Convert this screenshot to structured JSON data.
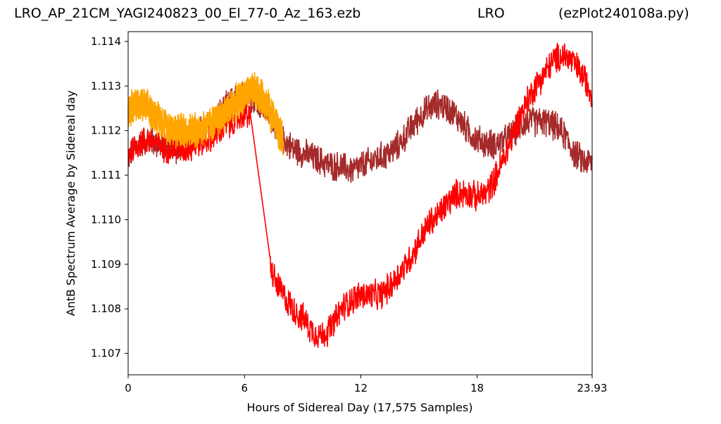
{
  "header": {
    "file_title": "LRO_AP_21CM_YAGI240823_00_El_77-0_Az_163.ezb",
    "site": "LRO",
    "program": "(ezPlot240108a.py)"
  },
  "chart_data": {
    "type": "line",
    "title": "LRO_AP_21CM_YAGI240823_00_El_77-0_Az_163.ezb",
    "xlabel": "Hours of Sidereal Day  (17,575 Samples)",
    "ylabel": "AntB Spectrum Average by Sidereal day",
    "xlim": [
      0,
      23.93
    ],
    "ylim": [
      1.10652,
      1.11422
    ],
    "xticks": [
      0,
      6,
      12,
      18,
      23.93
    ],
    "xtick_labels": [
      "0",
      "6",
      "12",
      "18",
      "23.93"
    ],
    "yticks": [
      1.107,
      1.108,
      1.109,
      1.11,
      1.111,
      1.112,
      1.113,
      1.114
    ],
    "ytick_labels": [
      "1.107",
      "1.108",
      "1.109",
      "1.110",
      "1.111",
      "1.112",
      "1.113",
      "1.114"
    ],
    "grid": false,
    "series": [
      {
        "color": "#a52a2a",
        "noise": 0.00038,
        "x": [
          0,
          0.5,
          1,
          1.5,
          2,
          2.5,
          3,
          3.5,
          4,
          4.5,
          5,
          5.5,
          6,
          6.5,
          7,
          7.5,
          8,
          8.5,
          9,
          9.5,
          10,
          10.5,
          11,
          11.5,
          12,
          12.5,
          13,
          13.5,
          14,
          14.5,
          15,
          15.5,
          16,
          16.5,
          17,
          17.5,
          18,
          18.5,
          19,
          19.5,
          20,
          20.5,
          21,
          21.5,
          22,
          22.5,
          23,
          23.5,
          23.93
        ],
        "y": [
          1.1114,
          1.1117,
          1.1118,
          1.1117,
          1.1116,
          1.1116,
          1.1117,
          1.1119,
          1.1121,
          1.1123,
          1.1125,
          1.1127,
          1.1128,
          1.1127,
          1.1125,
          1.1122,
          1.1118,
          1.1116,
          1.1115,
          1.1114,
          1.1113,
          1.1112,
          1.1112,
          1.1111,
          1.1112,
          1.1113,
          1.1114,
          1.1115,
          1.1117,
          1.112,
          1.1123,
          1.1125,
          1.1126,
          1.1125,
          1.1123,
          1.112,
          1.1118,
          1.1117,
          1.1117,
          1.1118,
          1.112,
          1.1122,
          1.1122,
          1.1122,
          1.1121,
          1.1119,
          1.1115,
          1.1113,
          1.1113
        ]
      },
      {
        "color": "#ff0000",
        "noise": 0.00038,
        "x": [
          0,
          0.5,
          1,
          1.5,
          2,
          2.5,
          3,
          3.5,
          4,
          4.5,
          5,
          5.5,
          6,
          6.3,
          7.3,
          7.6,
          8,
          8.5,
          9,
          9.5,
          10,
          10.5,
          11,
          11.5,
          12,
          12.5,
          13,
          13.5,
          14,
          14.5,
          15,
          15.5,
          16,
          16.5,
          17,
          17.5,
          18,
          18.5,
          19,
          19.5,
          20,
          20.5,
          21,
          21.5,
          22,
          22.5,
          23,
          23.5,
          23.93
        ],
        "y": [
          1.1115,
          1.1117,
          1.1118,
          1.1117,
          1.1116,
          1.1116,
          1.1116,
          1.1117,
          1.1118,
          1.1119,
          1.1121,
          1.1122,
          1.1124,
          1.1123,
          1.109,
          1.1086,
          1.1083,
          1.108,
          1.1078,
          1.1075,
          1.1074,
          1.1076,
          1.108,
          1.1082,
          1.1083,
          1.1083,
          1.1083,
          1.1085,
          1.1088,
          1.1091,
          1.1095,
          1.1099,
          1.1101,
          1.1104,
          1.1106,
          1.1106,
          1.1105,
          1.1106,
          1.111,
          1.1115,
          1.1121,
          1.1126,
          1.113,
          1.1133,
          1.1136,
          1.1137,
          1.1135,
          1.1132,
          1.1128
        ]
      },
      {
        "color": "#ffa500",
        "noise": 0.00045,
        "x": [
          0,
          0.5,
          1,
          1.5,
          2,
          2.5,
          3,
          3.5,
          4,
          4.5,
          5,
          5.5,
          6,
          6.5,
          7,
          7.5,
          8
        ],
        "y": [
          1.1125,
          1.1126,
          1.1125,
          1.1123,
          1.1121,
          1.112,
          1.112,
          1.112,
          1.1121,
          1.1122,
          1.1124,
          1.1126,
          1.1128,
          1.1129,
          1.1127,
          1.1123,
          1.1117
        ]
      }
    ]
  }
}
